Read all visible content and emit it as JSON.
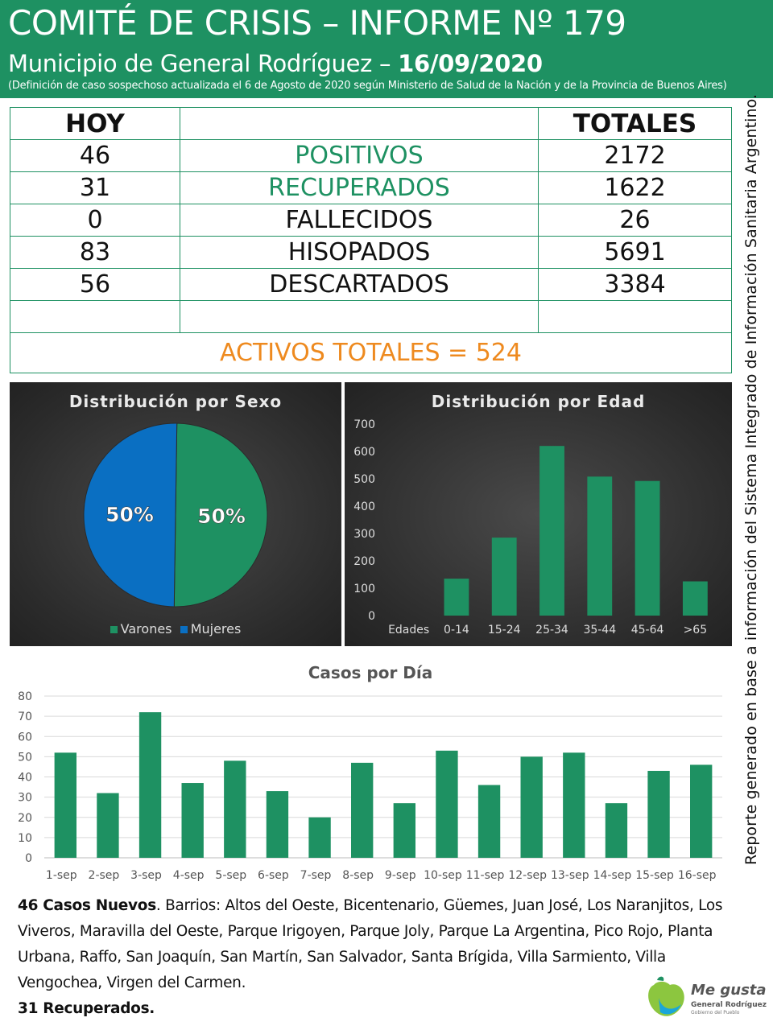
{
  "header": {
    "title": "COMITÉ DE CRISIS – INFORME Nº 179",
    "subtitle_prefix": "Municipio de General Rodríguez – ",
    "date": "16/09/2020",
    "note": "(Definición de caso sospechoso actualizada el 6 de Agosto de 2020 según Ministerio de Salud de la Nación y de la Provincia de Buenos Aires)"
  },
  "summary": {
    "col_hoy": "HOY",
    "col_totales": "TOTALES",
    "rows": [
      {
        "hoy": "46",
        "label": "POSITIVOS",
        "total": "2172"
      },
      {
        "hoy": "31",
        "label": "RECUPERADOS",
        "total": "1622"
      },
      {
        "hoy": "0",
        "label": "FALLECIDOS",
        "total": "26"
      },
      {
        "hoy": "83",
        "label": "HISOPADOS",
        "total": "5691"
      },
      {
        "hoy": "56",
        "label": "DESCARTADOS",
        "total": "3384"
      }
    ],
    "activos": "ACTIVOS TOTALES = 524"
  },
  "side_note": "Reporte generado en base a información del Sistema Integrado de Información Sanitaria Argentino.",
  "colors": {
    "green": "#1e9162",
    "blue": "#0a6fc2",
    "orange": "#ee8a1f"
  },
  "chart_data": [
    {
      "type": "pie",
      "title": "Distribución por Sexo",
      "categories": [
        "Varones",
        "Mujeres"
      ],
      "values": [
        50,
        50
      ],
      "data_labels": [
        "50%",
        "50%"
      ],
      "colors": [
        "#1e9162",
        "#0a6fc2"
      ],
      "legend": "bottom"
    },
    {
      "type": "bar",
      "title": "Distribución por Edad",
      "xlabel": "Edades",
      "categories": [
        "0-14",
        "15-24",
        "25-34",
        "35-44",
        "45-64",
        ">65"
      ],
      "values": [
        135,
        285,
        620,
        508,
        492,
        125
      ],
      "ylim": [
        0,
        700
      ],
      "yticks": [
        "0",
        "100",
        "200",
        "300",
        "400",
        "500",
        "600",
        "700"
      ],
      "grid": false
    },
    {
      "type": "bar",
      "title": "Casos por Día",
      "categories": [
        "1-sep",
        "2-sep",
        "3-sep",
        "4-sep",
        "5-sep",
        "6-sep",
        "7-sep",
        "8-sep",
        "9-sep",
        "10-sep",
        "11-sep",
        "12-sep",
        "13-sep",
        "14-sep",
        "15-sep",
        "16-sep"
      ],
      "values": [
        52,
        32,
        72,
        37,
        48,
        33,
        20,
        47,
        27,
        53,
        36,
        50,
        52,
        27,
        43,
        46
      ],
      "ylim": [
        0,
        80
      ],
      "yticks": [
        "0",
        "10",
        "20",
        "30",
        "40",
        "50",
        "60",
        "70",
        "80"
      ],
      "grid": true
    }
  ],
  "footer": {
    "casos_bold": "46 Casos Nuevos",
    "casos_text": ". Barrios: Altos del Oeste, Bicentenario, Güemes, Juan José, Los Naranjitos, Los Viveros, Maravilla del Oeste, Parque Irigoyen, Parque Joly, Parque La Argentina, Pico Rojo, Planta Urbana, Raffo, San Joaquín, San Martín, San Salvador, Santa Brígida, Villa Sarmiento, Villa Vengochea, Virgen del Carmen.",
    "recuperados": "31 Recuperados."
  },
  "logo": {
    "text": "Me gusta",
    "sub": "General Rodríguez",
    "sub2": "Gobierno del Pueblo"
  }
}
